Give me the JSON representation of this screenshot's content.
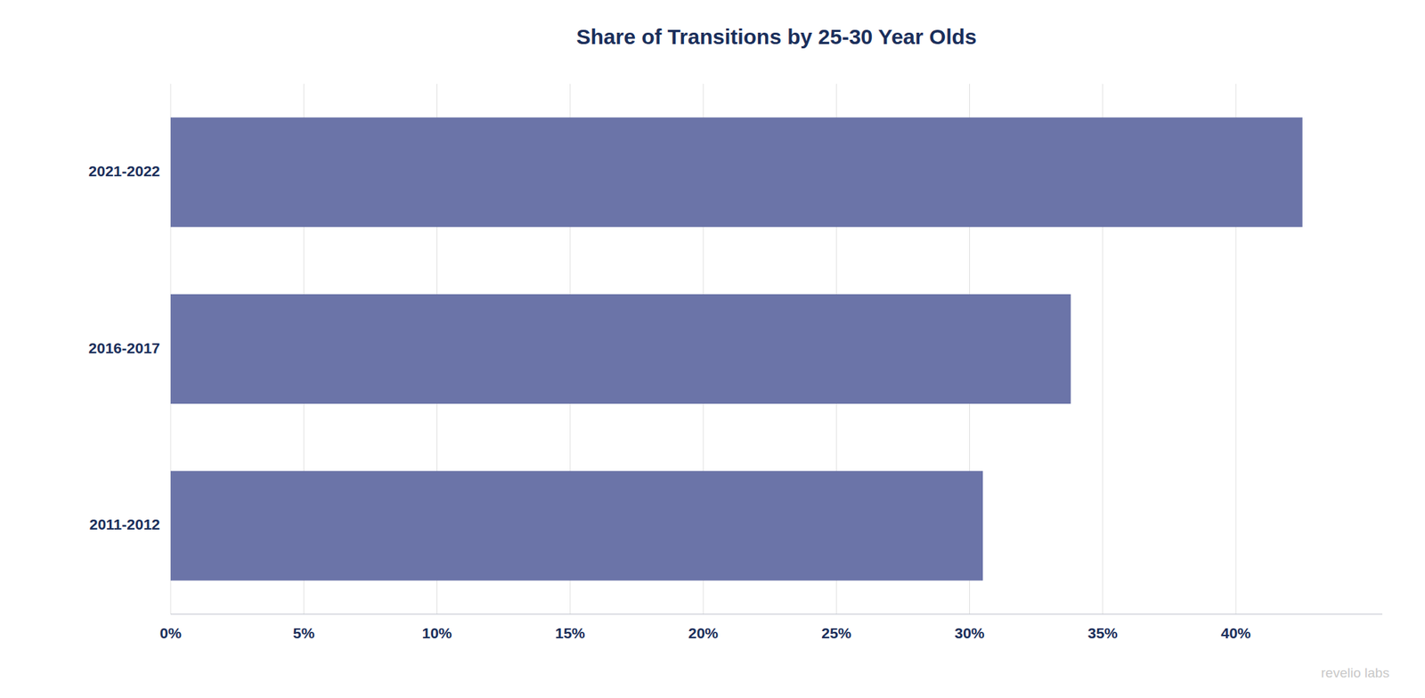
{
  "chart_data": {
    "type": "bar",
    "orientation": "horizontal",
    "title": "Share of Transitions by 25-30 Year Olds",
    "categories": [
      "2011-2012",
      "2016-2017",
      "2021-2022"
    ],
    "values": [
      0.305,
      0.338,
      0.425
    ],
    "color": "#6b74a8",
    "xlim": [
      0,
      0.455
    ],
    "xticks": [
      {
        "value": 0.0,
        "label": "0%"
      },
      {
        "value": 0.05,
        "label": "5%"
      },
      {
        "value": 0.1,
        "label": "10%"
      },
      {
        "value": 0.15,
        "label": "15%"
      },
      {
        "value": 0.2,
        "label": "20%"
      },
      {
        "value": 0.25,
        "label": "25%"
      },
      {
        "value": 0.3,
        "label": "30%"
      },
      {
        "value": 0.35,
        "label": "35%"
      },
      {
        "value": 0.4,
        "label": "40%"
      }
    ],
    "grid": true,
    "annotations": [
      "revelio labs"
    ]
  }
}
